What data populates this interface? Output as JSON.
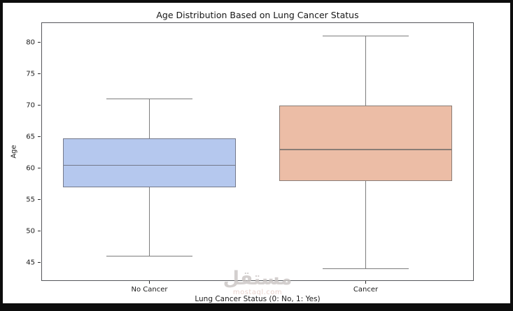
{
  "figure": {
    "watermark": {
      "logo": "مستقل",
      "domain": "mostaql.com"
    }
  },
  "chart_data": {
    "type": "boxplot",
    "title": "Age Distribution Based on Lung Cancer Status",
    "xlabel": "Lung Cancer Status (0: No, 1: Yes)",
    "ylabel": "Age",
    "categories": [
      "No Cancer",
      "Cancer"
    ],
    "yticks": [
      45,
      50,
      55,
      60,
      65,
      70,
      75,
      80
    ],
    "ylim": [
      42.1,
      83.2
    ],
    "grid": false,
    "legend": "none",
    "box_width_frac": 0.4,
    "whisker_color": "#7d7d7d",
    "frame_color": "#55565a",
    "tick_color": "#2b2b2b",
    "series": [
      {
        "name": "No Cancer",
        "min": 46,
        "q1": 57,
        "median": 60.5,
        "q3": 64.75,
        "max": 71,
        "fill": "#b5c8ee",
        "edge": "#74798a"
      },
      {
        "name": "Cancer",
        "min": 44,
        "q1": 58,
        "median": 63,
        "q3": 70,
        "max": 81,
        "fill": "#ecbda6",
        "edge": "#8a7d76"
      }
    ]
  }
}
